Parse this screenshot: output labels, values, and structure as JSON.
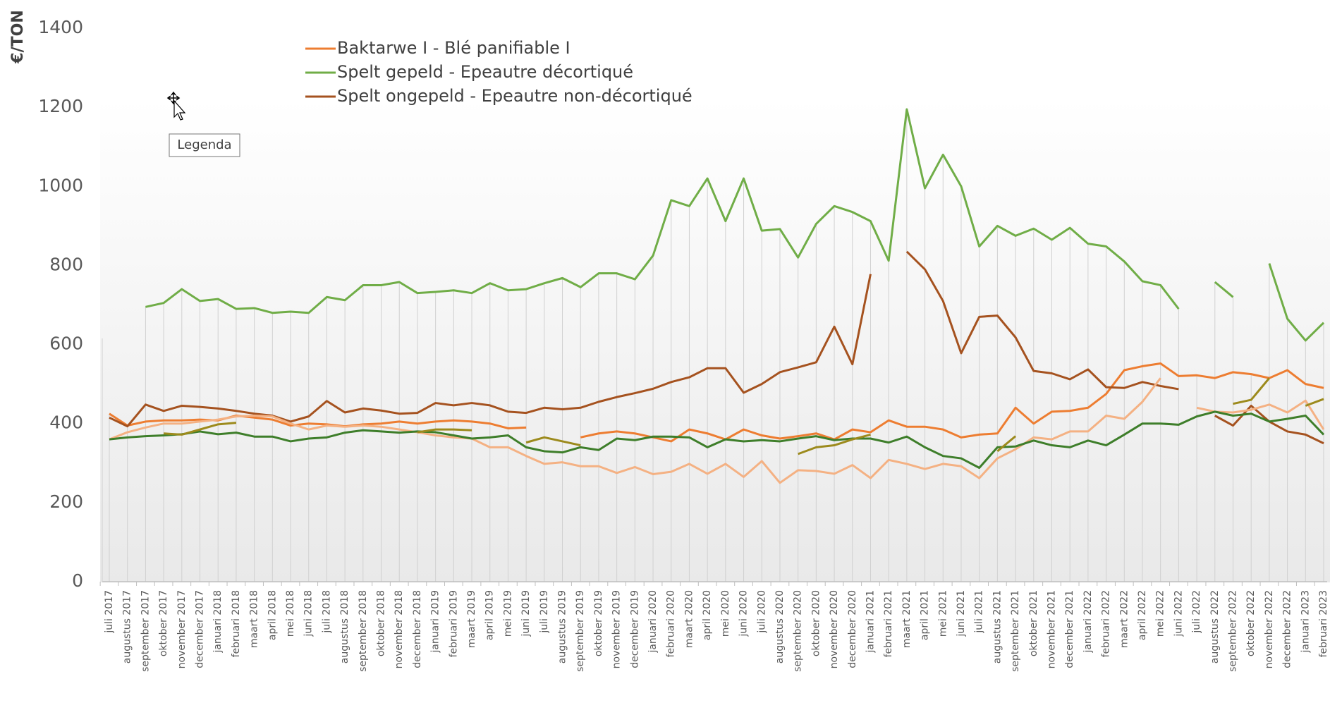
{
  "chart_data": {
    "type": "line",
    "y_label": "€/TON",
    "tooltip": "Legenda",
    "categories": [
      "juli 2017",
      "augustus 2017",
      "september 2017",
      "oktober 2017",
      "november 2017",
      "december 2017",
      "januari 2018",
      "februari 2018",
      "maart 2018",
      "april 2018",
      "mei 2018",
      "juni 2018",
      "juli 2018",
      "augustus 2018",
      "september 2018",
      "oktober 2018",
      "november 2018",
      "december 2018",
      "januari 2019",
      "februari 2019",
      "maart 2019",
      "april 2019",
      "mei 2019",
      "juni 2019",
      "juli 2019",
      "augustus 2019",
      "september 2019",
      "oktober 2019",
      "november 2019",
      "december 2019",
      "januari 2020",
      "februari 2020",
      "maart 2020",
      "april 2020",
      "mei 2020",
      "juni 2020",
      "juli 2020",
      "augustus 2020",
      "september 2020",
      "oktober 2020",
      "november 2020",
      "december 2020",
      "januari 2021",
      "februari 2021",
      "maart 2021",
      "april 2021",
      "mei 2021",
      "juni 2021",
      "juli 2021",
      "augustus 2021",
      "september 2021",
      "oktober 2021",
      "november 2021",
      "december 2021",
      "januari 2022",
      "februari 2022",
      "maart 2022",
      "april 2022",
      "mei 2022",
      "juni 2022",
      "juli 2022",
      "augustus 2022",
      "september 2022",
      "oktober 2022",
      "november 2022",
      "december 2022",
      "januari 2023",
      "februari 2023"
    ],
    "series": [
      {
        "name": "Baktarwe I - Blé panifiable I",
        "color": "#ed7d31",
        "values": [
          425,
          395,
          405,
          408,
          408,
          410,
          408,
          420,
          415,
          410,
          395,
          400,
          398,
          393,
          398,
          400,
          405,
          400,
          405,
          408,
          405,
          400,
          388,
          390,
          null,
          null,
          365,
          375,
          380,
          375,
          365,
          355,
          385,
          375,
          360,
          385,
          370,
          362,
          368,
          375,
          360,
          385,
          378,
          408,
          392,
          392,
          385,
          365,
          372,
          375,
          440,
          400,
          430,
          432,
          440,
          475,
          535,
          545,
          552,
          520,
          522,
          515,
          530,
          525,
          515,
          535,
          500,
          490
        ]
      },
      {
        "name": "Spelt gepeld - Epeautre décortiqué",
        "color": "#70ad47",
        "values": [
          null,
          null,
          695,
          705,
          740,
          710,
          715,
          690,
          692,
          680,
          683,
          680,
          720,
          712,
          750,
          750,
          758,
          730,
          733,
          737,
          730,
          755,
          737,
          740,
          755,
          768,
          745,
          780,
          780,
          765,
          825,
          965,
          950,
          1020,
          912,
          1020,
          888,
          892,
          820,
          905,
          950,
          935,
          912,
          812,
          1195,
          995,
          1080,
          1000,
          848,
          900,
          875,
          893,
          865,
          895,
          855,
          848,
          810,
          760,
          750,
          690,
          null,
          758,
          720,
          null,
          805,
          665,
          610,
          655
        ]
      },
      {
        "name": "Spelt ongepeld - Epeautre non-décortiqué",
        "color": "#a5521f",
        "values": [
          415,
          393,
          448,
          432,
          445,
          442,
          438,
          432,
          425,
          420,
          405,
          418,
          457,
          428,
          438,
          433,
          425,
          427,
          452,
          446,
          452,
          446,
          430,
          427,
          440,
          436,
          440,
          455,
          467,
          477,
          488,
          505,
          517,
          540,
          540,
          478,
          500,
          530,
          542,
          555,
          645,
          550,
          778,
          null,
          835,
          790,
          710,
          578,
          670,
          673,
          618,
          533,
          527,
          512,
          537,
          492,
          490,
          505,
          495,
          487,
          null,
          420,
          395,
          445,
          405,
          380,
          372,
          350
        ]
      },
      {
        "color": "#f4b183",
        "values": [
          360,
          378,
          390,
          400,
          400,
          405,
          410,
          418,
          420,
          418,
          400,
          385,
          395,
          392,
          395,
          392,
          385,
          378,
          370,
          365,
          362,
          340,
          340,
          318,
          298,
          302,
          292,
          292,
          275,
          290,
          272,
          278,
          298,
          273,
          298,
          265,
          305,
          250,
          282,
          280,
          273,
          295,
          262,
          308,
          298,
          285,
          298,
          292,
          262,
          312,
          335,
          365,
          360,
          380,
          380,
          420,
          412,
          455,
          515,
          null,
          440,
          430,
          428,
          435,
          448,
          428,
          458,
          385
        ]
      },
      {
        "color": "#3e7e2a",
        "values": [
          360,
          365,
          368,
          370,
          373,
          380,
          373,
          377,
          367,
          367,
          355,
          362,
          365,
          377,
          383,
          380,
          377,
          380,
          378,
          370,
          362,
          365,
          370,
          340,
          330,
          327,
          340,
          333,
          362,
          358,
          367,
          367,
          365,
          340,
          360,
          355,
          358,
          355,
          362,
          368,
          358,
          362,
          362,
          352,
          367,
          340,
          318,
          312,
          288,
          340,
          342,
          357,
          345,
          340,
          357,
          345,
          372,
          400,
          400,
          397,
          418,
          430,
          420,
          425,
          405,
          412,
          420,
          372
        ]
      },
      {
        "color": "#9c8a1c",
        "values": [
          null,
          null,
          null,
          375,
          372,
          385,
          398,
          402,
          null,
          null,
          null,
          null,
          null,
          null,
          null,
          null,
          null,
          378,
          385,
          385,
          383,
          null,
          null,
          352,
          365,
          355,
          345,
          null,
          null,
          null,
          null,
          null,
          null,
          null,
          null,
          null,
          null,
          null,
          323,
          340,
          345,
          360,
          372,
          null,
          null,
          null,
          null,
          null,
          null,
          330,
          368,
          null,
          null,
          null,
          null,
          null,
          null,
          null,
          null,
          null,
          null,
          null,
          450,
          460,
          515,
          null,
          445,
          462
        ]
      }
    ],
    "ylim": [
      0,
      1400
    ],
    "yticks": [
      0,
      200,
      400,
      600,
      800,
      1000,
      1200,
      1400
    ]
  }
}
